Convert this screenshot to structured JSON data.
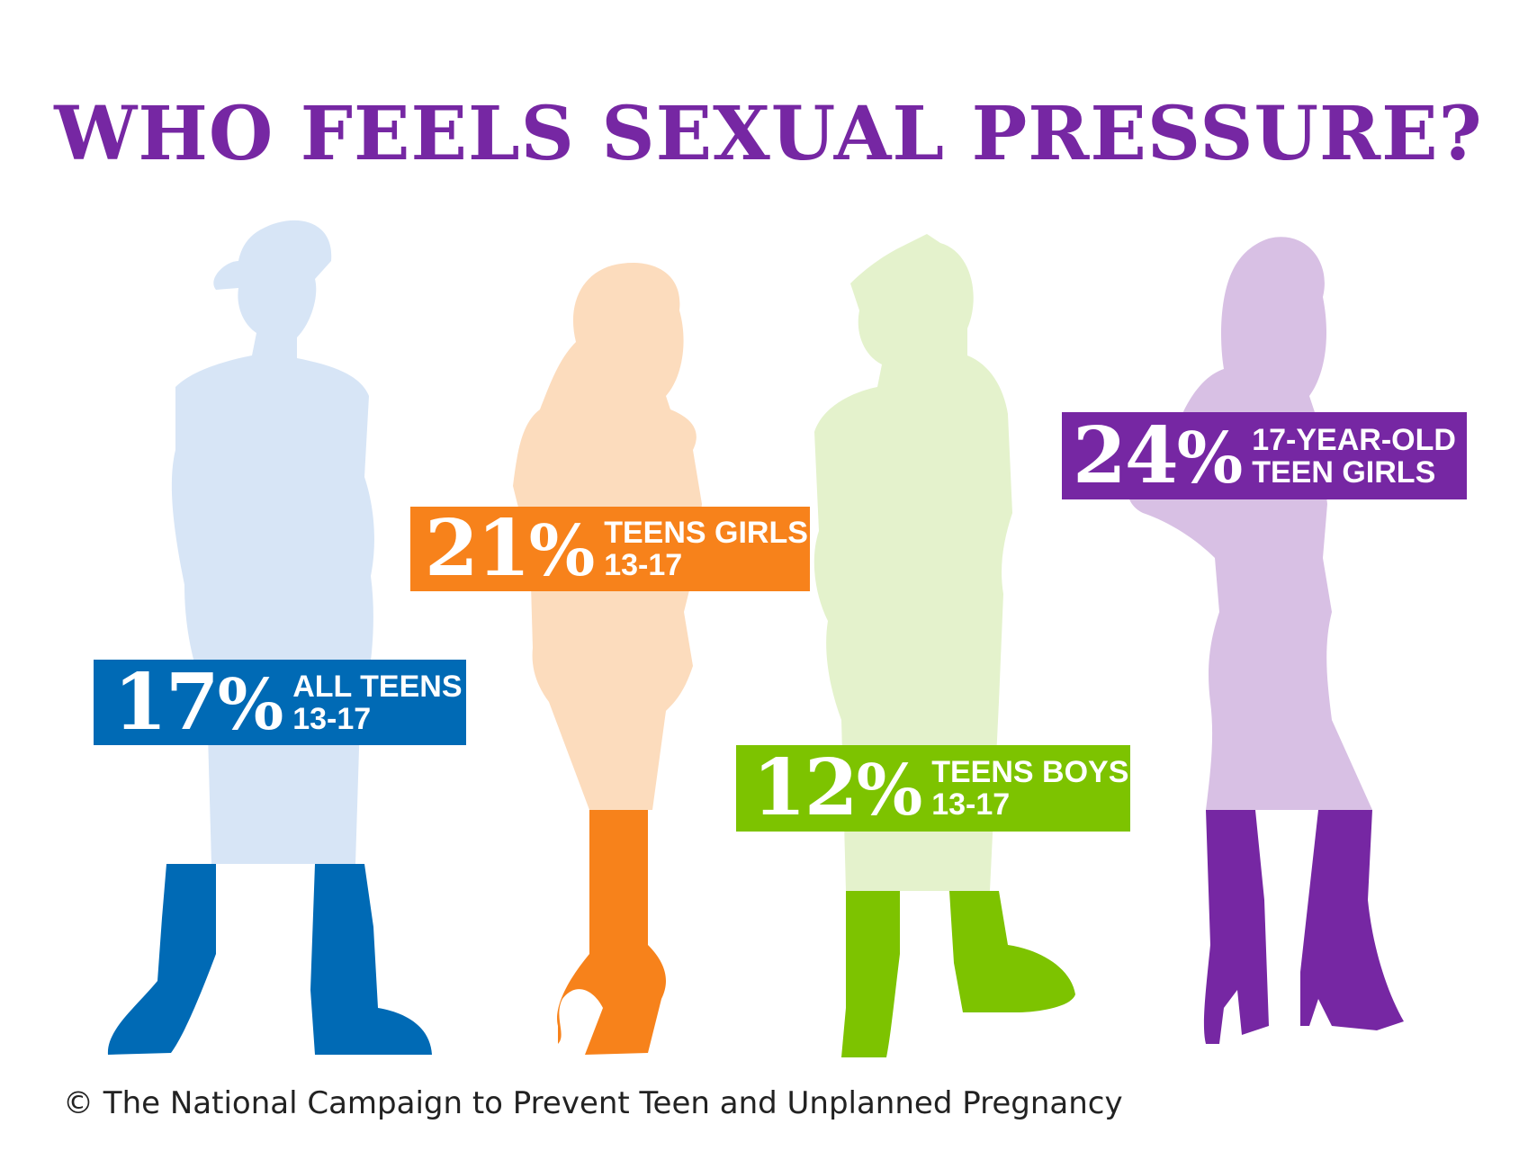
{
  "title": "WHO FEELS SEXUAL PRESSURE?",
  "colors": {
    "title": "#7627a3",
    "text_on_label": "#ffffff",
    "blue": "#006ab5",
    "blue_light": "#d7e5f6",
    "orange": "#f7821b",
    "orange_light": "#fcdcbd",
    "green": "#7dc300",
    "green_light": "#e4f2cc",
    "purple": "#7627a3",
    "purple_light": "#d8c0e4"
  },
  "groups": [
    {
      "id": "all-teens",
      "percent": 17,
      "percent_text": "17",
      "percent_sign": "%",
      "line1": "ALL TEENS",
      "line2": "13-17",
      "figure": "boy-cap-silhouette",
      "color": "#006ab5"
    },
    {
      "id": "teen-girls",
      "percent": 21,
      "percent_text": "21",
      "percent_sign": "%",
      "line1": "TEENS GIRLS",
      "line2": "13-17",
      "figure": "girl-ponytail-silhouette",
      "color": "#f7821b"
    },
    {
      "id": "teen-boys",
      "percent": 12,
      "percent_text": "12",
      "percent_sign": "%",
      "line1": "TEENS BOYS",
      "line2": "13-17",
      "figure": "boy-spiky-hair-silhouette",
      "color": "#7dc300"
    },
    {
      "id": "17-year-old-girls",
      "percent": 24,
      "percent_text": "24",
      "percent_sign": "%",
      "line1": "17-YEAR-OLD",
      "line2": "TEEN GIRLS",
      "figure": "girl-long-hair-silhouette",
      "color": "#7627a3"
    }
  ],
  "copyright": "© The National Campaign to Prevent Teen and Unplanned Pregnancy"
}
